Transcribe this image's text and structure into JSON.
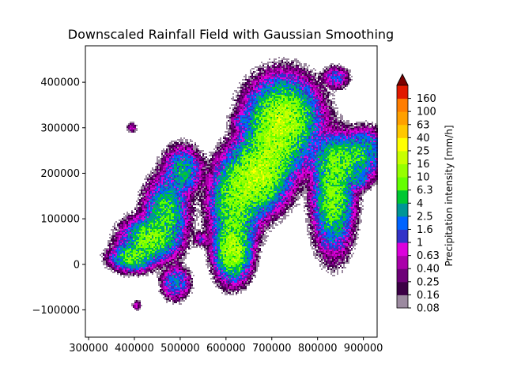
{
  "chart_data": {
    "type": "heatmap",
    "title": "Downscaled Rainfall Field with Gaussian Smoothing",
    "xlabel": "",
    "ylabel": "",
    "xlim": [
      293000,
      930000
    ],
    "ylim": [
      -160000,
      480000
    ],
    "x_ticks": [
      300000,
      400000,
      500000,
      600000,
      700000,
      800000,
      900000
    ],
    "y_ticks": [
      -100000,
      0,
      100000,
      200000,
      300000,
      400000
    ],
    "x_tick_labels": [
      "300000",
      "400000",
      "500000",
      "600000",
      "700000",
      "800000",
      "900000"
    ],
    "y_tick_labels": [
      "−100000",
      "0",
      "100000",
      "200000",
      "300000",
      "400000"
    ],
    "colorbar": {
      "label": "Precipitation intensity [mm/h]",
      "levels": [
        "0.08",
        "0.16",
        "0.25",
        "0.40",
        "0.63",
        "1",
        "1.6",
        "2.5",
        "4",
        "6.3",
        "10",
        "16",
        "25",
        "40",
        "63",
        "100",
        "160"
      ],
      "colors": [
        "#9c8aa0",
        "#3c0046",
        "#6e0078",
        "#aa00aa",
        "#dc00dc",
        "#3232c8",
        "#0064ff",
        "#009696",
        "#00c832",
        "#64ff00",
        "#96ff00",
        "#c8ff00",
        "#ffff00",
        "#ffc800",
        "#ffa000",
        "#ff7d00",
        "#e11900"
      ],
      "extend_color": "#7d0000"
    },
    "rain_cells": [
      {
        "x": 435000,
        "y": 55000,
        "sx": 28000,
        "sy": 22000,
        "peak": 10
      },
      {
        "x": 395000,
        "y": 15000,
        "sx": 22000,
        "sy": 14000,
        "peak": 8
      },
      {
        "x": 470000,
        "y": 115000,
        "sx": 22000,
        "sy": 35000,
        "peak": 6.3
      },
      {
        "x": 505000,
        "y": 205000,
        "sx": 20000,
        "sy": 25000,
        "peak": 4
      },
      {
        "x": 490000,
        "y": -40000,
        "sx": 15000,
        "sy": 18000,
        "peak": 2.5
      },
      {
        "x": 545000,
        "y": 55000,
        "sx": 8000,
        "sy": 8000,
        "peak": 1
      },
      {
        "x": 615000,
        "y": 30000,
        "sx": 18000,
        "sy": 30000,
        "peak": 16
      },
      {
        "x": 620000,
        "y": 135000,
        "sx": 25000,
        "sy": 45000,
        "peak": 10
      },
      {
        "x": 665000,
        "y": 190000,
        "sx": 30000,
        "sy": 35000,
        "peak": 16
      },
      {
        "x": 700000,
        "y": 250000,
        "sx": 30000,
        "sy": 40000,
        "peak": 10
      },
      {
        "x": 725000,
        "y": 320000,
        "sx": 35000,
        "sy": 40000,
        "peak": 16
      },
      {
        "x": 635000,
        "y": 315000,
        "sx": 12000,
        "sy": 9000,
        "peak": 1
      },
      {
        "x": 835000,
        "y": 150000,
        "sx": 20000,
        "sy": 55000,
        "peak": 10
      },
      {
        "x": 860000,
        "y": 230000,
        "sx": 35000,
        "sy": 25000,
        "peak": 6.3
      },
      {
        "x": 905000,
        "y": 260000,
        "sx": 20000,
        "sy": 20000,
        "peak": 2.5
      },
      {
        "x": 890000,
        "y": 185000,
        "sx": 12000,
        "sy": 10000,
        "peak": 2.5
      },
      {
        "x": 840000,
        "y": 410000,
        "sx": 14000,
        "sy": 12000,
        "peak": 1.6
      },
      {
        "x": 395000,
        "y": 300000,
        "sx": 6000,
        "sy": 6000,
        "peak": 0.63
      },
      {
        "x": 405000,
        "y": -90000,
        "sx": 5000,
        "sy": 6000,
        "peak": 0.63
      }
    ]
  }
}
